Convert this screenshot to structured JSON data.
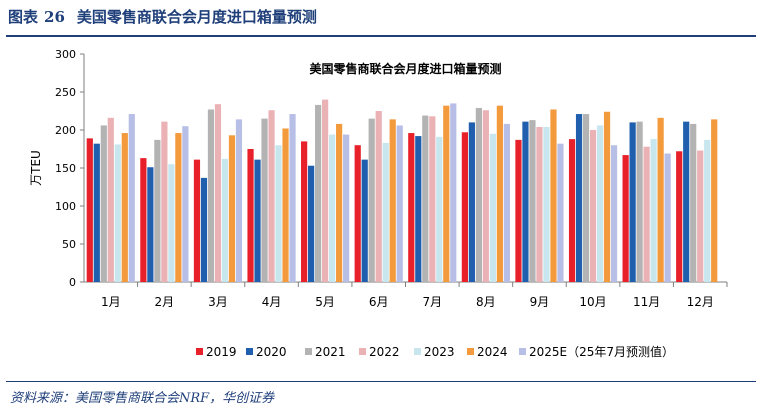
{
  "figure": {
    "label": "图表",
    "number": "26",
    "title": "美国零售商联合会月度进口箱量预测",
    "source": "资料来源：美国零售商联合会NRF，华创证券"
  },
  "chart_data": {
    "type": "bar",
    "title": "美国零售商联合会月度进口箱量预测",
    "ylabel": "万TEU",
    "xlabel": "",
    "ylim": [
      0,
      300
    ],
    "yticks": [
      0,
      50,
      100,
      150,
      200,
      250,
      300
    ],
    "grid": false,
    "legend_position": "bottom",
    "categories": [
      "1月",
      "2月",
      "3月",
      "4月",
      "5月",
      "6月",
      "7月",
      "8月",
      "9月",
      "10月",
      "11月",
      "12月"
    ],
    "series": [
      {
        "name": "2019",
        "color": "#e8202a",
        "values": [
          189,
          163,
          161,
          175,
          185,
          180,
          196,
          197,
          187,
          188,
          167,
          172
        ]
      },
      {
        "name": "2020",
        "color": "#1f5fae",
        "values": [
          182,
          151,
          137,
          161,
          153,
          161,
          192,
          210,
          211,
          221,
          210,
          211
        ]
      },
      {
        "name": "2021",
        "color": "#b3b3b3",
        "values": [
          206,
          187,
          227,
          215,
          233,
          215,
          219,
          229,
          213,
          221,
          211,
          208
        ]
      },
      {
        "name": "2022",
        "color": "#ebb2b5",
        "values": [
          216,
          211,
          234,
          226,
          240,
          225,
          218,
          226,
          204,
          200,
          178,
          173
        ]
      },
      {
        "name": "2023",
        "color": "#c8e6ee",
        "values": [
          181,
          155,
          162,
          180,
          194,
          183,
          191,
          195,
          204,
          206,
          188,
          187
        ]
      },
      {
        "name": "2024",
        "color": "#f39a3c",
        "values": [
          196,
          196,
          193,
          202,
          208,
          214,
          232,
          232,
          227,
          224,
          216,
          214
        ]
      },
      {
        "name": "2025E（25年7月预测值）",
        "color": "#b8bfe6",
        "values": [
          221,
          205,
          214,
          221,
          194,
          206,
          235,
          208,
          182,
          180,
          169,
          null
        ]
      }
    ]
  }
}
